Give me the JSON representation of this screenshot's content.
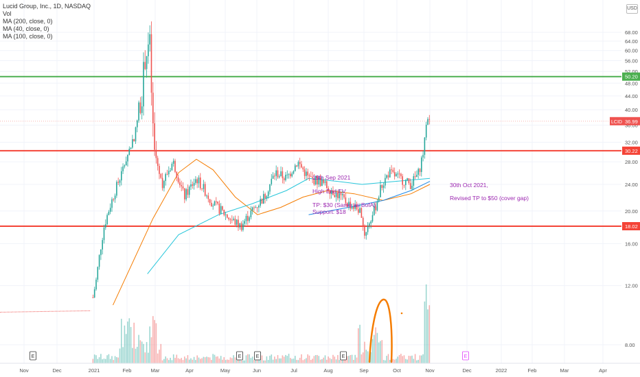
{
  "header": {
    "symbol_line": "Lucid Group, Inc., 1D, NASDAQ",
    "vol_label": "Vol",
    "ma_labels": [
      "MA (200, close, 0)",
      "MA (40, close, 0)",
      "MA (100, close, 0)"
    ],
    "currency": "USD"
  },
  "annotations": {
    "sep_date": "19th Sep 2021",
    "sep_thesis": "High End EV",
    "sep_tp": "TP: $30 (Same as BofA)",
    "sep_support": "Support: $18",
    "oct_date": "30th Oct 2021,",
    "oct_revised": "Revised TP to $50 (cover gap)"
  },
  "colors": {
    "up": "#26a69a",
    "down": "#ef5350",
    "resistance_green": "#4caf50",
    "level_red": "#f44336",
    "ma40": "#f57c00",
    "ma100": "#26c6da",
    "annotation": "#9c27b0",
    "drawing": "#f57c00"
  },
  "chart_data": {
    "type": "candlestick",
    "title": "Lucid Group, Inc., 1D, NASDAQ",
    "ylim": [
      6,
      72
    ],
    "y_scale": "log",
    "y_ticks": [
      "8.00",
      "12.00",
      "16.00",
      "20.00",
      "24.00",
      "28.00",
      "32.00",
      "36.00",
      "40.00",
      "44.00",
      "48.00",
      "52.00",
      "56.00",
      "60.00",
      "64.00",
      "68.00"
    ],
    "x_ticks": [
      "Nov",
      "Dec",
      "2021",
      "Feb",
      "Mar",
      "Apr",
      "May",
      "Jun",
      "Jul",
      "Aug",
      "Sep",
      "Oct",
      "Nov",
      "Dec",
      "2022",
      "Feb",
      "Mar",
      "Apr"
    ],
    "horizontal_levels": [
      {
        "label": "50.20",
        "value": 50.2,
        "color": "green"
      },
      {
        "label": "30.22",
        "value": 30.22,
        "color": "red"
      },
      {
        "label": "18.02",
        "value": 18.02,
        "color": "red"
      }
    ],
    "last_price": {
      "symbol": "LCID",
      "value": "36.99"
    },
    "earnings_markers": [
      "E",
      "E",
      "E",
      "E",
      "E"
    ],
    "price_path": [
      [
        "2020-10-20",
        10.0
      ],
      [
        "2020-12-31",
        10.1
      ],
      [
        "2021-01-05",
        12.5
      ],
      [
        "2021-01-12",
        18.0
      ],
      [
        "2021-01-20",
        22.0
      ],
      [
        "2021-01-28",
        26.0
      ],
      [
        "2021-02-03",
        30.0
      ],
      [
        "2021-02-09",
        34.0
      ],
      [
        "2021-02-15",
        45.0
      ],
      [
        "2021-02-18",
        58.0
      ],
      [
        "2021-02-22",
        64.0
      ],
      [
        "2021-02-24",
        40.0
      ],
      [
        "2021-02-26",
        30.0
      ],
      [
        "2021-03-05",
        24.0
      ],
      [
        "2021-03-15",
        28.0
      ],
      [
        "2021-03-25",
        22.0
      ],
      [
        "2021-04-05",
        25.0
      ],
      [
        "2021-04-20",
        21.0
      ],
      [
        "2021-05-05",
        19.0
      ],
      [
        "2021-05-15",
        18.0
      ],
      [
        "2021-05-25",
        20.0
      ],
      [
        "2021-06-05",
        22.0
      ],
      [
        "2021-06-15",
        26.0
      ],
      [
        "2021-06-25",
        25.0
      ],
      [
        "2021-07-05",
        28.0
      ],
      [
        "2021-07-15",
        25.0
      ],
      [
        "2021-07-25",
        24.5
      ],
      [
        "2021-08-05",
        23.0
      ],
      [
        "2021-08-20",
        21.0
      ],
      [
        "2021-08-31",
        20.0
      ],
      [
        "2021-09-03",
        17.0
      ],
      [
        "2021-09-12",
        20.0
      ],
      [
        "2021-09-18",
        23.5
      ],
      [
        "2021-09-25",
        26.0
      ],
      [
        "2021-10-05",
        25.0
      ],
      [
        "2021-10-15",
        24.0
      ],
      [
        "2021-10-22",
        26.0
      ],
      [
        "2021-10-27",
        31.0
      ],
      [
        "2021-10-29",
        38.0
      ],
      [
        "2021-11-01",
        36.99
      ]
    ],
    "ma40_path": [
      [
        "2021-01-20",
        10.5
      ],
      [
        "2021-02-25",
        19.0
      ],
      [
        "2021-03-20",
        26.0
      ],
      [
        "2021-04-05",
        28.5
      ],
      [
        "2021-04-20",
        26.5
      ],
      [
        "2021-05-10",
        22.0
      ],
      [
        "2021-05-30",
        19.5
      ],
      [
        "2021-06-20",
        20.5
      ],
      [
        "2021-07-10",
        22.0
      ],
      [
        "2021-08-01",
        23.0
      ],
      [
        "2021-08-25",
        22.5
      ],
      [
        "2021-09-20",
        21.5
      ],
      [
        "2021-10-15",
        22.5
      ],
      [
        "2021-11-01",
        24.0
      ]
    ],
    "ma100_path": [
      [
        "2021-02-20",
        13.0
      ],
      [
        "2021-03-20",
        17.0
      ],
      [
        "2021-04-25",
        19.5
      ],
      [
        "2021-05-25",
        21.0
      ],
      [
        "2021-06-25",
        23.0
      ],
      [
        "2021-07-15",
        25.0
      ],
      [
        "2021-08-10",
        24.5
      ],
      [
        "2021-09-01",
        24.0
      ],
      [
        "2021-10-01",
        24.5
      ],
      [
        "2021-11-01",
        25.0
      ]
    ],
    "ma200_path": [
      [
        "2021-07-15",
        19.5
      ],
      [
        "2021-08-20",
        20.5
      ],
      [
        "2021-09-20",
        21.5
      ],
      [
        "2021-10-15",
        23.0
      ],
      [
        "2021-11-01",
        24.5
      ]
    ]
  }
}
